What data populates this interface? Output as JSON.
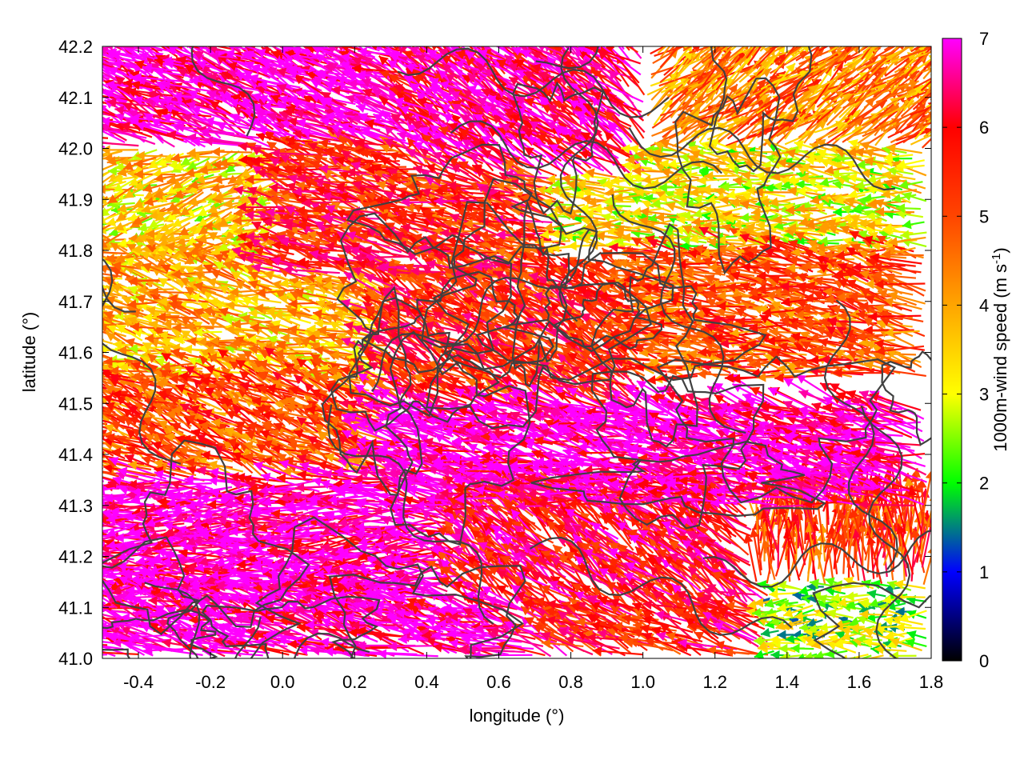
{
  "chart_data": {
    "type": "vector-field",
    "xlabel": "longitude (°)",
    "ylabel": "latitude (°)",
    "xlim": [
      -0.5,
      1.8
    ],
    "ylim": [
      41.0,
      42.2
    ],
    "x_ticks": [
      {
        "value": -0.4,
        "label": "-0.4"
      },
      {
        "value": -0.2,
        "label": "-0.2"
      },
      {
        "value": 0.0,
        "label": "0.0"
      },
      {
        "value": 0.2,
        "label": "0.2"
      },
      {
        "value": 0.4,
        "label": "0.4"
      },
      {
        "value": 0.6,
        "label": "0.6"
      },
      {
        "value": 0.8,
        "label": "0.8"
      },
      {
        "value": 1.0,
        "label": "1.0"
      },
      {
        "value": 1.2,
        "label": "1.2"
      },
      {
        "value": 1.4,
        "label": "1.4"
      },
      {
        "value": 1.6,
        "label": "1.6"
      },
      {
        "value": 1.8,
        "label": "1.8"
      }
    ],
    "y_ticks": [
      {
        "value": 41.0,
        "label": "41.0"
      },
      {
        "value": 41.1,
        "label": "41.1"
      },
      {
        "value": 41.2,
        "label": "41.2"
      },
      {
        "value": 41.3,
        "label": "41.3"
      },
      {
        "value": 41.4,
        "label": "41.4"
      },
      {
        "value": 41.5,
        "label": "41.5"
      },
      {
        "value": 41.6,
        "label": "41.6"
      },
      {
        "value": 41.7,
        "label": "41.7"
      },
      {
        "value": 41.8,
        "label": "41.8"
      },
      {
        "value": 41.9,
        "label": "41.9"
      },
      {
        "value": 42.0,
        "label": "42.0"
      },
      {
        "value": 42.1,
        "label": "42.1"
      },
      {
        "value": 42.2,
        "label": "42.2"
      }
    ],
    "colorbar": {
      "label_main": "1000m-wind speed (m s",
      "label_sup": "-1",
      "label_close": ")",
      "range": [
        0,
        7
      ],
      "ticks": [
        {
          "value": 0,
          "label": "0"
        },
        {
          "value": 1,
          "label": "1"
        },
        {
          "value": 2,
          "label": "2"
        },
        {
          "value": 3,
          "label": "3"
        },
        {
          "value": 4,
          "label": "4"
        },
        {
          "value": 5,
          "label": "5"
        },
        {
          "value": 6,
          "label": "6"
        },
        {
          "value": 7,
          "label": "7"
        }
      ],
      "colors": [
        {
          "value": 0,
          "color": "#000000"
        },
        {
          "value": 1,
          "color": "#0000ff"
        },
        {
          "value": 1.5,
          "color": "#008080"
        },
        {
          "value": 2,
          "color": "#00ff00"
        },
        {
          "value": 3,
          "color": "#ffff00"
        },
        {
          "value": 4,
          "color": "#ffa500"
        },
        {
          "value": 5,
          "color": "#ff4500"
        },
        {
          "value": 6,
          "color": "#ff0000"
        },
        {
          "value": 7,
          "color": "#ff00ff"
        }
      ]
    },
    "contour_color": "#404040",
    "grid": false,
    "vector_regions": [
      {
        "lon": [
          -0.5,
          0.4
        ],
        "lat": [
          42.0,
          42.2
        ],
        "u": -1.0,
        "v": 0.45,
        "speed": 7
      },
      {
        "lon": [
          0.4,
          1.0
        ],
        "lat": [
          41.95,
          42.2
        ],
        "u": -0.75,
        "v": 0.55,
        "speed": 6.5
      },
      {
        "lon": [
          1.0,
          1.8
        ],
        "lat": [
          42.0,
          42.2
        ],
        "u": 0.6,
        "v": 0.45,
        "speed": 4.5
      },
      {
        "lon": [
          -0.5,
          0.0
        ],
        "lat": [
          41.8,
          42.0
        ],
        "u": -1.0,
        "v": -0.3,
        "speed": 3.5
      },
      {
        "lon": [
          0.0,
          0.8
        ],
        "lat": [
          41.75,
          42.0
        ],
        "u": -1.0,
        "v": 0.3,
        "speed": 5.5
      },
      {
        "lon": [
          0.8,
          1.8
        ],
        "lat": [
          41.8,
          42.0
        ],
        "u": -1.0,
        "v": 0.1,
        "speed": 3.2
      },
      {
        "lon": [
          -0.5,
          0.3
        ],
        "lat": [
          41.55,
          41.8
        ],
        "u": -1.0,
        "v": 0.25,
        "speed": 3.8
      },
      {
        "lon": [
          0.3,
          1.0
        ],
        "lat": [
          41.5,
          41.75
        ],
        "u": -0.9,
        "v": 0.55,
        "speed": 5.5
      },
      {
        "lon": [
          1.0,
          1.8
        ],
        "lat": [
          41.55,
          41.8
        ],
        "u": -1.0,
        "v": 0.2,
        "speed": 5.0
      },
      {
        "lon": [
          -0.5,
          0.3
        ],
        "lat": [
          41.35,
          41.55
        ],
        "u": -1.0,
        "v": 0.45,
        "speed": 5.0
      },
      {
        "lon": [
          0.3,
          1.8
        ],
        "lat": [
          41.3,
          41.5
        ],
        "u": -1.0,
        "v": 0.25,
        "speed": 6.8
      },
      {
        "lon": [
          -0.5,
          0.5
        ],
        "lat": [
          41.15,
          41.35
        ],
        "u": -1.0,
        "v": 0.0,
        "speed": 6.9
      },
      {
        "lon": [
          0.5,
          1.3
        ],
        "lat": [
          41.1,
          41.3
        ],
        "u": -0.7,
        "v": 0.6,
        "speed": 6.0
      },
      {
        "lon": [
          1.3,
          1.8
        ],
        "lat": [
          41.15,
          41.4
        ],
        "u": 0.0,
        "v": 1.0,
        "speed": 5.2
      },
      {
        "lon": [
          -0.5,
          0.7
        ],
        "lat": [
          41.0,
          41.15
        ],
        "u": -1.0,
        "v": 0.3,
        "speed": 6.8
      },
      {
        "lon": [
          0.7,
          1.35
        ],
        "lat": [
          41.0,
          41.15
        ],
        "u": -0.9,
        "v": 0.4,
        "speed": 5.8
      },
      {
        "lon": [
          1.35,
          1.8
        ],
        "lat": [
          41.0,
          41.15
        ],
        "u": -1.0,
        "v": 0.0,
        "speed": 2.5
      }
    ]
  }
}
